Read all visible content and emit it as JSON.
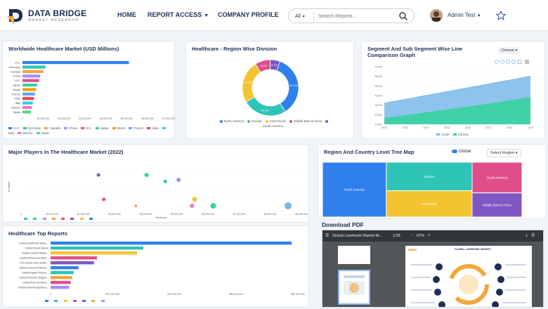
{
  "header": {
    "brand_title": "DATA BRIDGE",
    "brand_sub": "MARKET RESEARCH",
    "nav": [
      {
        "label": "HOME"
      },
      {
        "label": "REPORT ACCESS"
      },
      {
        "label": "COMPANY PROFILE"
      }
    ],
    "search": {
      "category": "All",
      "placeholder": "Search Reports..."
    },
    "user": {
      "name": "Admin Test"
    }
  },
  "panels": {
    "worldwide": {
      "title": "Worldwide Healthcare Market (USD Millions)"
    },
    "region": {
      "title": "Healthcare - Region Wise Division"
    },
    "segment": {
      "title": "Segment And Sub Segment Wise Line Comparison Graph",
      "choose_label": "Choose"
    },
    "players": {
      "title": "Major Players In The Healthcare Market (2022)"
    },
    "tree": {
      "title": "Region And Country Level Tree Map",
      "global_label": "Global",
      "select_label": "Select Region"
    },
    "top_reports": {
      "title": "Healthcare Top Reports"
    },
    "pdf": {
      "title": "Download PDF",
      "toolbar_title": "Global Landmark Market M...",
      "page_label": "1/28",
      "zoom_label": "67%",
      "doc_heading": "GLOBAL LANDMARK MARKET"
    }
  },
  "chart_data": [
    {
      "type": "bar",
      "title": "Worldwide Healthcare Market (USD Millions)",
      "orientation": "horizontal",
      "categories": [
        "U.S.",
        "Germany",
        "Canada",
        "China",
        "U.K.",
        "Japan",
        "Brazil",
        "France",
        "India",
        "Italy",
        "Mexico",
        "Spain"
      ],
      "values": [
        5100000,
        1100000,
        1000000,
        850000,
        800000,
        700000,
        650000,
        600000,
        550000,
        500000,
        450000,
        400000
      ],
      "colors": [
        "#2f80ed",
        "#2ec4b6",
        "#f4a63a",
        "#a78bfa",
        "#e14f8a",
        "#34d399",
        "#f59e0b",
        "#60a5fa",
        "#ef4444",
        "#22d3ee",
        "#f472b6",
        "#4ade80"
      ],
      "xlim": [
        0,
        7000000
      ],
      "x_ticks": [
        "0",
        "$1,000,000",
        "$2,000,000",
        "$3,000,000",
        "$4,000,000",
        "$5,000,000",
        "$6,000,000",
        "$7,000,000"
      ],
      "legend": [
        "U.S.",
        "Germany",
        "Canada",
        "China",
        "U.K.",
        "Japan",
        "Brazil",
        "France",
        "India",
        "Italy",
        "Mexico",
        "Spain"
      ]
    },
    {
      "type": "pie",
      "title": "Healthcare - Region Wise Division",
      "donut": true,
      "categories": [
        "North America",
        "Europe",
        "Asia-Pacific",
        "Middle East & Africa",
        "South America"
      ],
      "values": [
        35.0,
        25.1,
        24.0,
        8.6,
        5.7
      ],
      "labels": [
        "35.0%",
        "25.1%",
        "24.0%",
        "8.6%",
        "5.7%"
      ],
      "colors": [
        "#2f80ed",
        "#2ec4b6",
        "#f4c430",
        "#e14f8a",
        "#7e57c2"
      ]
    },
    {
      "type": "area",
      "title": "Segment And Sub Segment Wise Line Comparison Graph",
      "x": [
        2022,
        2023,
        2024,
        2025,
        2026,
        2027,
        2028,
        2029
      ],
      "series": [
        {
          "name": "Acute",
          "values": [
            32000,
            36000,
            40000,
            44000,
            48000,
            52000,
            56000,
            60000
          ],
          "color": "#7ab8ea"
        },
        {
          "name": "Chronic",
          "values": [
            16000,
            19000,
            22000,
            25000,
            28000,
            31000,
            34500,
            38000
          ],
          "color": "#34d399"
        }
      ],
      "y_ticks": [
        "10000",
        "20000",
        "30000",
        "40000",
        "50000",
        "60000",
        "70000"
      ],
      "ylim": [
        10000,
        70000
      ]
    },
    {
      "type": "scatter",
      "title": "Major Players In The Healthcare Market (2022)",
      "ylabel": "% Share",
      "xlabel": "Revenue",
      "x_ticks": [
        "0",
        "$1,000,000",
        "$2,000,000",
        "$3,000,000",
        "$4,000,000",
        "$5,000,000",
        "$6,000,000",
        "$7,000,000",
        "$8,000,000",
        "$9,000,000"
      ],
      "points": [
        {
          "x": 2900000,
          "y": 11,
          "r": 2.5,
          "color": "#7e57c2"
        },
        {
          "x": 4700000,
          "y": 11,
          "r": 3,
          "color": "#34d399"
        },
        {
          "x": 5400000,
          "y": 9,
          "r": 2.5,
          "color": "#2ec4b6"
        },
        {
          "x": 5900000,
          "y": 9.5,
          "r": 3,
          "color": "#a78bfa"
        },
        {
          "x": 3100000,
          "y": 3.5,
          "r": 2.5,
          "color": "#e14f8a"
        },
        {
          "x": 4300000,
          "y": 1.5,
          "r": 2,
          "color": "#f4a63a"
        },
        {
          "x": 6500000,
          "y": 3.5,
          "r": 3.5,
          "color": "#f4c430"
        },
        {
          "x": 6400000,
          "y": 1.5,
          "r": 3,
          "color": "#f472b6"
        },
        {
          "x": 7200000,
          "y": 1.5,
          "r": 4,
          "color": "#34d399"
        },
        {
          "x": 10000000,
          "y": 1.5,
          "r": 5,
          "color": "#7ab8ea"
        }
      ],
      "xlim": [
        0,
        10500000
      ],
      "ylim": [
        0,
        16
      ]
    },
    {
      "type": "heatmap",
      "title": "Region And Country Level Tree Map",
      "categories": [
        "North America",
        "Europe",
        "Asia-Pacific",
        "South America",
        "Middle East & Africa"
      ],
      "values": [
        35.0,
        25.1,
        24.0,
        5.7,
        8.6
      ],
      "colors": [
        "#2f80ed",
        "#2ec4b6",
        "#f4c430",
        "#e14f8a",
        "#7e57c2"
      ]
    },
    {
      "type": "bar",
      "title": "Healthcare Top Reports",
      "orientation": "horizontal",
      "categories": [
        "Global Healthcare Adver...",
        "Global Smart Market",
        "Global Content Marke...",
        "Global Ultrasound Mark...",
        "GCC Active Skin Health...",
        "Global Contract Pharma...",
        "Global Digital Pharma...",
        "Global Precision Diagno...",
        "Global Pure Dentistry...",
        "Global Smart Respiratory..."
      ],
      "values": [
        78000,
        30000,
        28000,
        15000,
        14000,
        9000,
        7500,
        7000,
        6500,
        6000
      ],
      "colors": [
        "#2f80ed",
        "#2ec4b6",
        "#f4c430",
        "#e14f8a",
        "#7e57c2",
        "#2f80ed",
        "#2ec4b6",
        "#f4a63a",
        "#e14f8a",
        "#a78bfa"
      ],
      "xlim": [
        0,
        80000
      ],
      "x_ticks": [
        "0",
        "$20,000,000",
        "$40,000,000",
        "$60,000,000",
        "$80,000,000"
      ]
    }
  ]
}
